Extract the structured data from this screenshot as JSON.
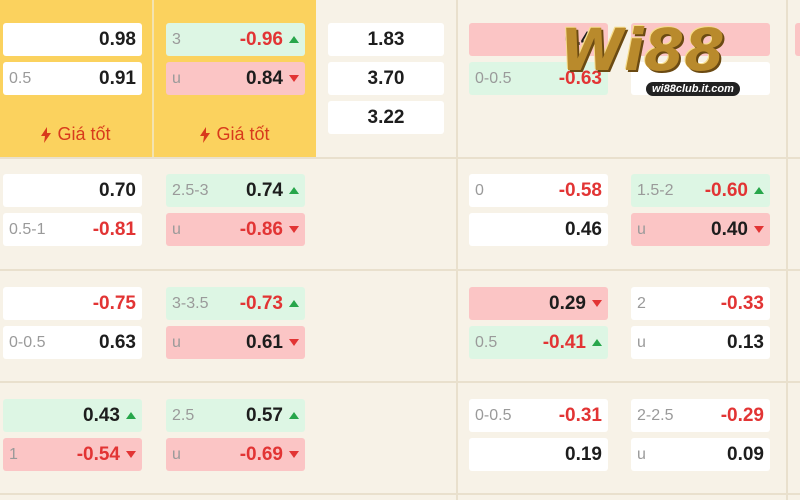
{
  "colors": {
    "highlight_column": "#fbd25e",
    "up": "#27a64b",
    "down": "#e23434",
    "green_cell": "#ddf6e4",
    "red_cell": "#fbc5c5"
  },
  "best_price_label": "Giá tốt",
  "logo": {
    "text": "Wi88",
    "url_text": "wi88club.it.com"
  },
  "rows": [
    {
      "handicap": {
        "home": {
          "line": "",
          "odds": "0.98"
        },
        "away": {
          "line": "0.5",
          "odds": "0.91"
        }
      },
      "over_under": {
        "over": {
          "line": "3",
          "odds": "-0.96"
        },
        "under": {
          "line": "u",
          "odds": "0.84"
        }
      },
      "one_x_two": [
        "1.83",
        "3.70",
        "3.22"
      ],
      "half_handicap": {
        "home": {
          "line": "",
          "odds": "0.43"
        },
        "away": {
          "line": "0-0.5",
          "odds": "-0.63"
        }
      },
      "half_over_under": {
        "over": {
          "line": "",
          "odds": ""
        },
        "under": {
          "line": "",
          "odds": ""
        }
      }
    },
    {
      "handicap": {
        "home": {
          "line": "",
          "odds": "0.70"
        },
        "away": {
          "line": "0.5-1",
          "odds": "-0.81"
        }
      },
      "over_under": {
        "over": {
          "line": "2.5-3",
          "odds": "0.74"
        },
        "under": {
          "line": "u",
          "odds": "-0.86"
        }
      },
      "half_handicap": {
        "home": {
          "line": "0",
          "odds": "-0.58"
        },
        "away": {
          "line": "",
          "odds": "0.46"
        }
      },
      "half_over_under": {
        "over": {
          "line": "1.5-2",
          "odds": "-0.60"
        },
        "under": {
          "line": "u",
          "odds": "0.40"
        }
      }
    },
    {
      "handicap": {
        "home": {
          "line": "",
          "odds": "-0.75"
        },
        "away": {
          "line": "0-0.5",
          "odds": "0.63"
        }
      },
      "over_under": {
        "over": {
          "line": "3-3.5",
          "odds": "-0.73"
        },
        "under": {
          "line": "u",
          "odds": "0.61"
        }
      },
      "half_handicap": {
        "home": {
          "line": "",
          "odds": "0.29"
        },
        "away": {
          "line": "0.5",
          "odds": "-0.41"
        }
      },
      "half_over_under": {
        "over": {
          "line": "2",
          "odds": "-0.33"
        },
        "under": {
          "line": "u",
          "odds": "0.13"
        }
      }
    },
    {
      "handicap": {
        "home": {
          "line": "",
          "odds": "0.43"
        },
        "away": {
          "line": "1",
          "odds": "-0.54"
        }
      },
      "over_under": {
        "over": {
          "line": "2.5",
          "odds": "0.57"
        },
        "under": {
          "line": "u",
          "odds": "-0.69"
        }
      },
      "half_handicap": {
        "home": {
          "line": "0-0.5",
          "odds": "-0.31"
        },
        "away": {
          "line": "",
          "odds": "0.19"
        }
      },
      "half_over_under": {
        "over": {
          "line": "2-2.5",
          "odds": "-0.29"
        },
        "under": {
          "line": "u",
          "odds": "0.09"
        }
      }
    }
  ]
}
